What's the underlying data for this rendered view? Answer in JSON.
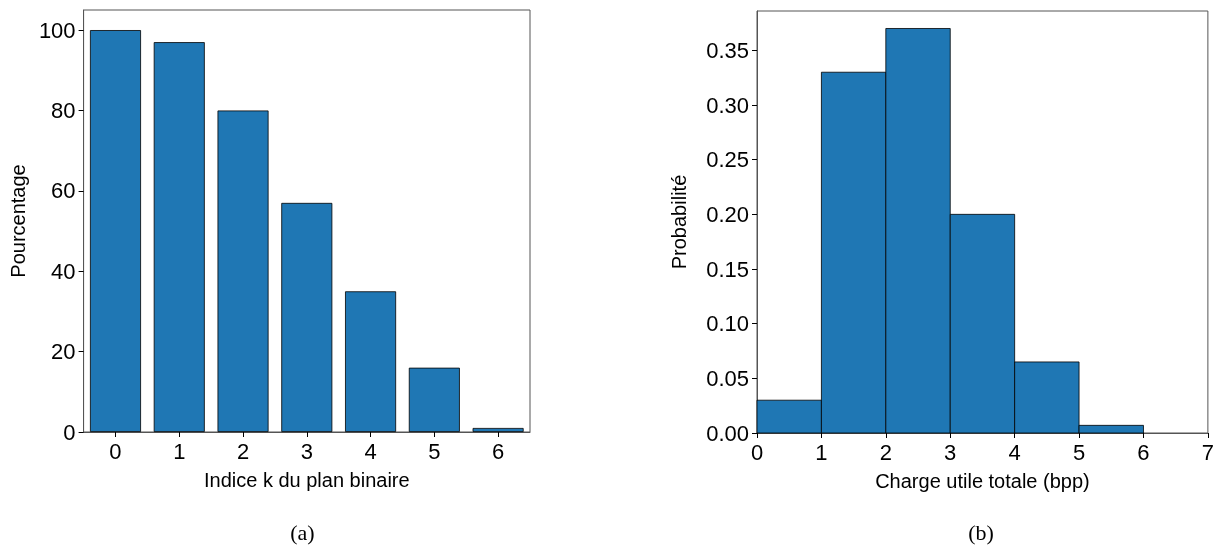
{
  "chart_data": [
    {
      "type": "bar",
      "categories": [
        "0",
        "1",
        "2",
        "3",
        "4",
        "5",
        "6"
      ],
      "values": [
        100,
        97,
        80,
        57,
        35,
        16,
        1
      ],
      "color": "#1f77b4",
      "xlabel": "Indice k du plan binaire",
      "ylabel": "Pourcentage",
      "ylim": [
        0,
        105
      ],
      "yticks": [
        0,
        20,
        40,
        60,
        80,
        100
      ],
      "grid": false,
      "annotations": [
        "(a)"
      ]
    },
    {
      "type": "histogram",
      "bins": [
        0,
        1,
        2,
        3,
        4,
        5,
        6
      ],
      "values": [
        0.03,
        0.33,
        0.37,
        0.2,
        0.065,
        0.007
      ],
      "color": "#1f77b4",
      "xlabel": "Charge utile totale (bpp)",
      "ylabel": "Probabilité",
      "xlim": [
        0,
        7
      ],
      "xticks": [
        0,
        1,
        2,
        3,
        4,
        5,
        6,
        7
      ],
      "ylim": [
        0,
        0.386
      ],
      "yticks": [
        {
          "value": 0,
          "label": "0.00"
        },
        {
          "value": 0.05,
          "label": "0.05"
        },
        {
          "value": 0.1,
          "label": "0.10"
        },
        {
          "value": 0.15,
          "label": "0.15"
        },
        {
          "value": 0.2,
          "label": "0.20"
        },
        {
          "value": 0.25,
          "label": "0.25"
        },
        {
          "value": 0.3,
          "label": "0.30"
        },
        {
          "value": 0.35,
          "label": "0.35"
        }
      ],
      "grid": false,
      "annotations": [
        "(b)"
      ]
    }
  ]
}
